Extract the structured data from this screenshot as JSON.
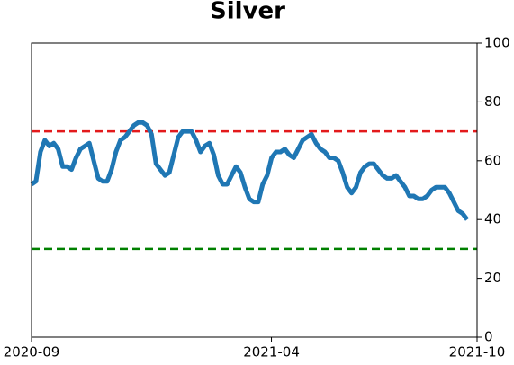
{
  "chart_data": {
    "type": "line",
    "title": "Silver",
    "series": [
      {
        "name": "Silver",
        "color": "#1f77b4",
        "values": [
          52,
          53,
          63,
          67,
          65,
          66,
          64,
          58,
          58,
          57,
          61,
          64,
          65,
          66,
          60,
          54,
          53,
          53,
          57,
          63,
          67,
          68,
          70,
          72,
          73,
          73,
          72,
          69,
          59,
          57,
          55,
          56,
          62,
          68,
          70,
          70,
          70,
          67,
          63,
          65,
          66,
          62,
          55,
          52,
          52,
          55,
          58,
          56,
          51,
          47,
          46,
          46,
          52,
          55,
          61,
          63,
          63,
          64,
          62,
          61,
          64,
          67,
          68,
          69,
          66,
          64,
          63,
          61,
          61,
          60,
          56,
          51,
          49,
          51,
          56,
          58,
          59,
          59,
          57,
          55,
          54,
          54,
          55,
          53,
          51,
          48,
          48,
          47,
          47,
          48,
          50,
          51,
          51,
          51,
          49,
          46,
          43,
          42,
          40
        ]
      }
    ],
    "xlim": [
      "2020-09",
      "2021-10"
    ],
    "xticks": [
      "2020-09",
      "2021-04",
      "2021-10"
    ],
    "ylim": [
      0,
      100
    ],
    "yticks": [
      0,
      20,
      40,
      60,
      80,
      100
    ],
    "y_axis_side": "right",
    "hlines": [
      {
        "value": 70,
        "color": "#e31a1c"
      },
      {
        "value": 30,
        "color": "#008000"
      }
    ]
  }
}
